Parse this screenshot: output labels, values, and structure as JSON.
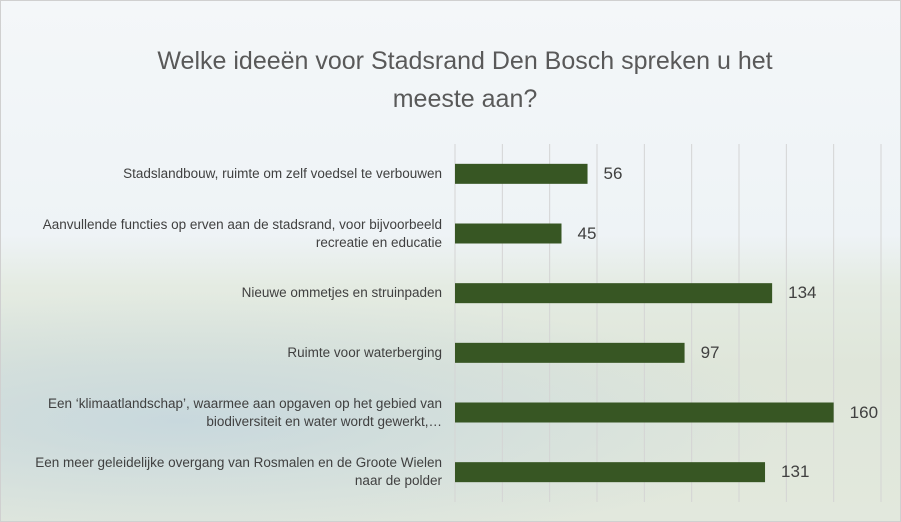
{
  "chart_data": {
    "type": "bar",
    "orientation": "horizontal",
    "title": "Welke ideeën voor Stadsrand Den Bosch spreken u het meeste aan?",
    "categories": [
      "Stadslandbouw, ruimte om zelf voedsel te verbouwen",
      "Aanvullende functies op erven aan de stadsrand, voor bijvoorbeeld recreatie en educatie",
      "Nieuwe ommetjes en struinpaden",
      "Ruimte voor waterberging",
      "Een ‘klimaatlandschap’, waarmee aan opgaven op het gebied van biodiversiteit en water wordt gewerkt,…",
      "Een meer geleidelijke overgang van Rosmalen en de Groote Wielen naar de polder"
    ],
    "values": [
      56,
      45,
      134,
      97,
      160,
      131
    ],
    "color": "#375623",
    "xlim": [
      0,
      180
    ],
    "xticks": [
      0,
      20,
      40,
      60,
      80,
      100,
      120,
      140,
      160,
      180
    ],
    "grid": true
  }
}
